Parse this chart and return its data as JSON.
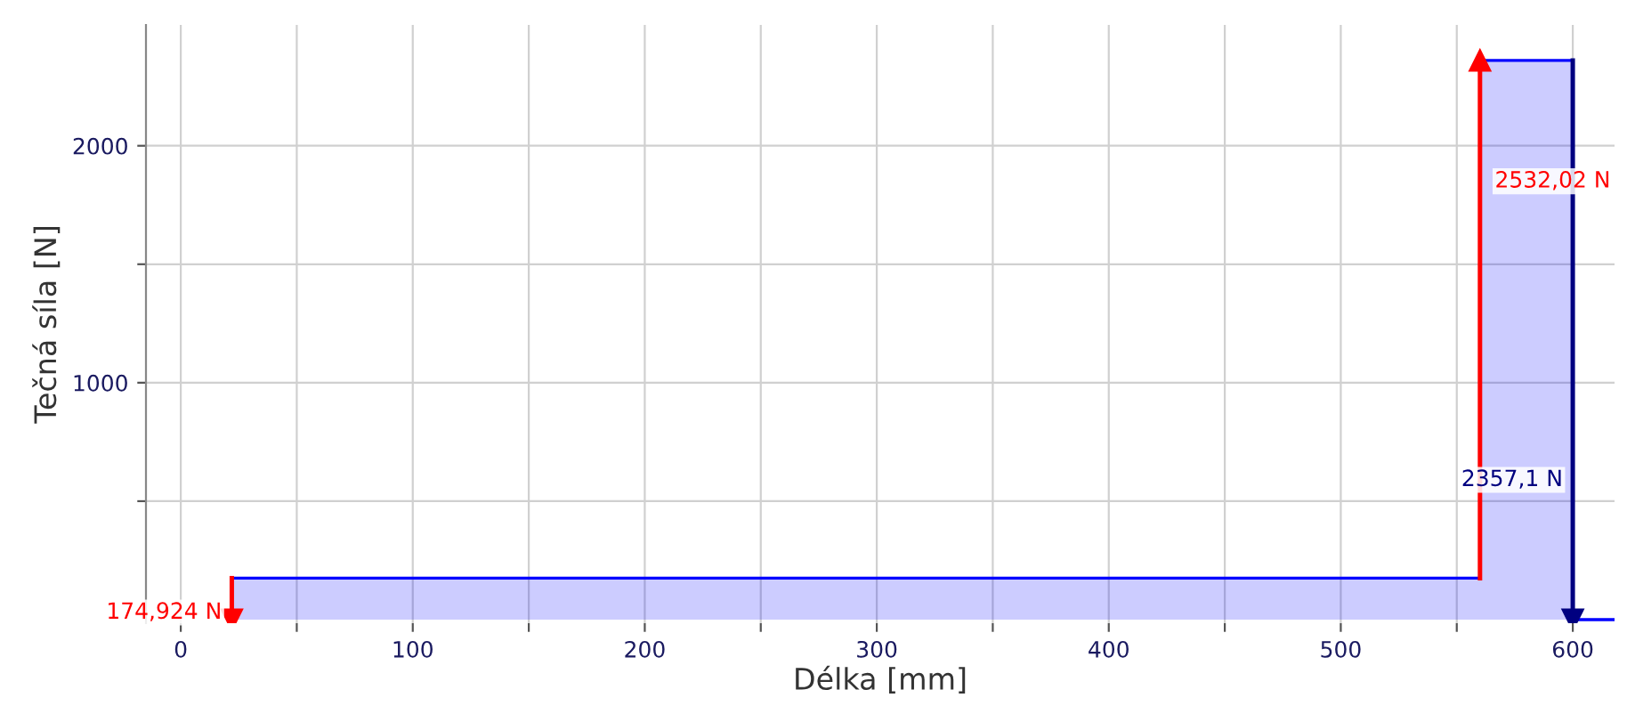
{
  "chart_data": {
    "type": "area",
    "xlabel": "Délka [mm]",
    "ylabel": "Tečná síla [N]",
    "series": [
      {
        "color": "#0000ff",
        "x": [
          22,
          560,
          560,
          600,
          600,
          618
        ],
        "values": [
          175,
          175,
          2360,
          2360,
          0,
          0
        ]
      },
      {
        "type": "line",
        "marker": "triangle",
        "color": "#ff0000",
        "x": [
          22,
          22
        ],
        "values": [
          175,
          0
        ]
      },
      {
        "type": "line",
        "marker": "triangle",
        "color": "#ff0000",
        "x": [
          560,
          560
        ],
        "values": [
          175,
          2360
        ]
      },
      {
        "type": "line",
        "marker": "triangle",
        "color": "#000080",
        "x": [
          600,
          600
        ],
        "values": [
          2360,
          0
        ]
      }
    ],
    "xlim": [
      -15,
      618
    ],
    "ylim": [
      -15,
      2510
    ],
    "xticks": [
      0,
      {
        "value": 50,
        "label": null
      },
      100,
      {
        "value": 150,
        "label": null
      },
      200,
      {
        "value": 250,
        "label": null
      },
      300,
      {
        "value": 350,
        "label": null
      },
      400,
      {
        "value": 450,
        "label": null
      },
      500,
      {
        "value": 550,
        "label": null
      },
      600
    ],
    "yticks": [
      {
        "value": 500,
        "label": null
      },
      1000,
      {
        "value": 1500,
        "label": null
      },
      2000
    ],
    "grid": true,
    "annotations": [
      {
        "text": "174,924 N",
        "x": 22,
        "y": 30
      },
      {
        "text": "2532,02 N",
        "x": 560,
        "y": 1850
      },
      {
        "text": "2357,1 N",
        "x": 600,
        "y": 590
      }
    ]
  }
}
